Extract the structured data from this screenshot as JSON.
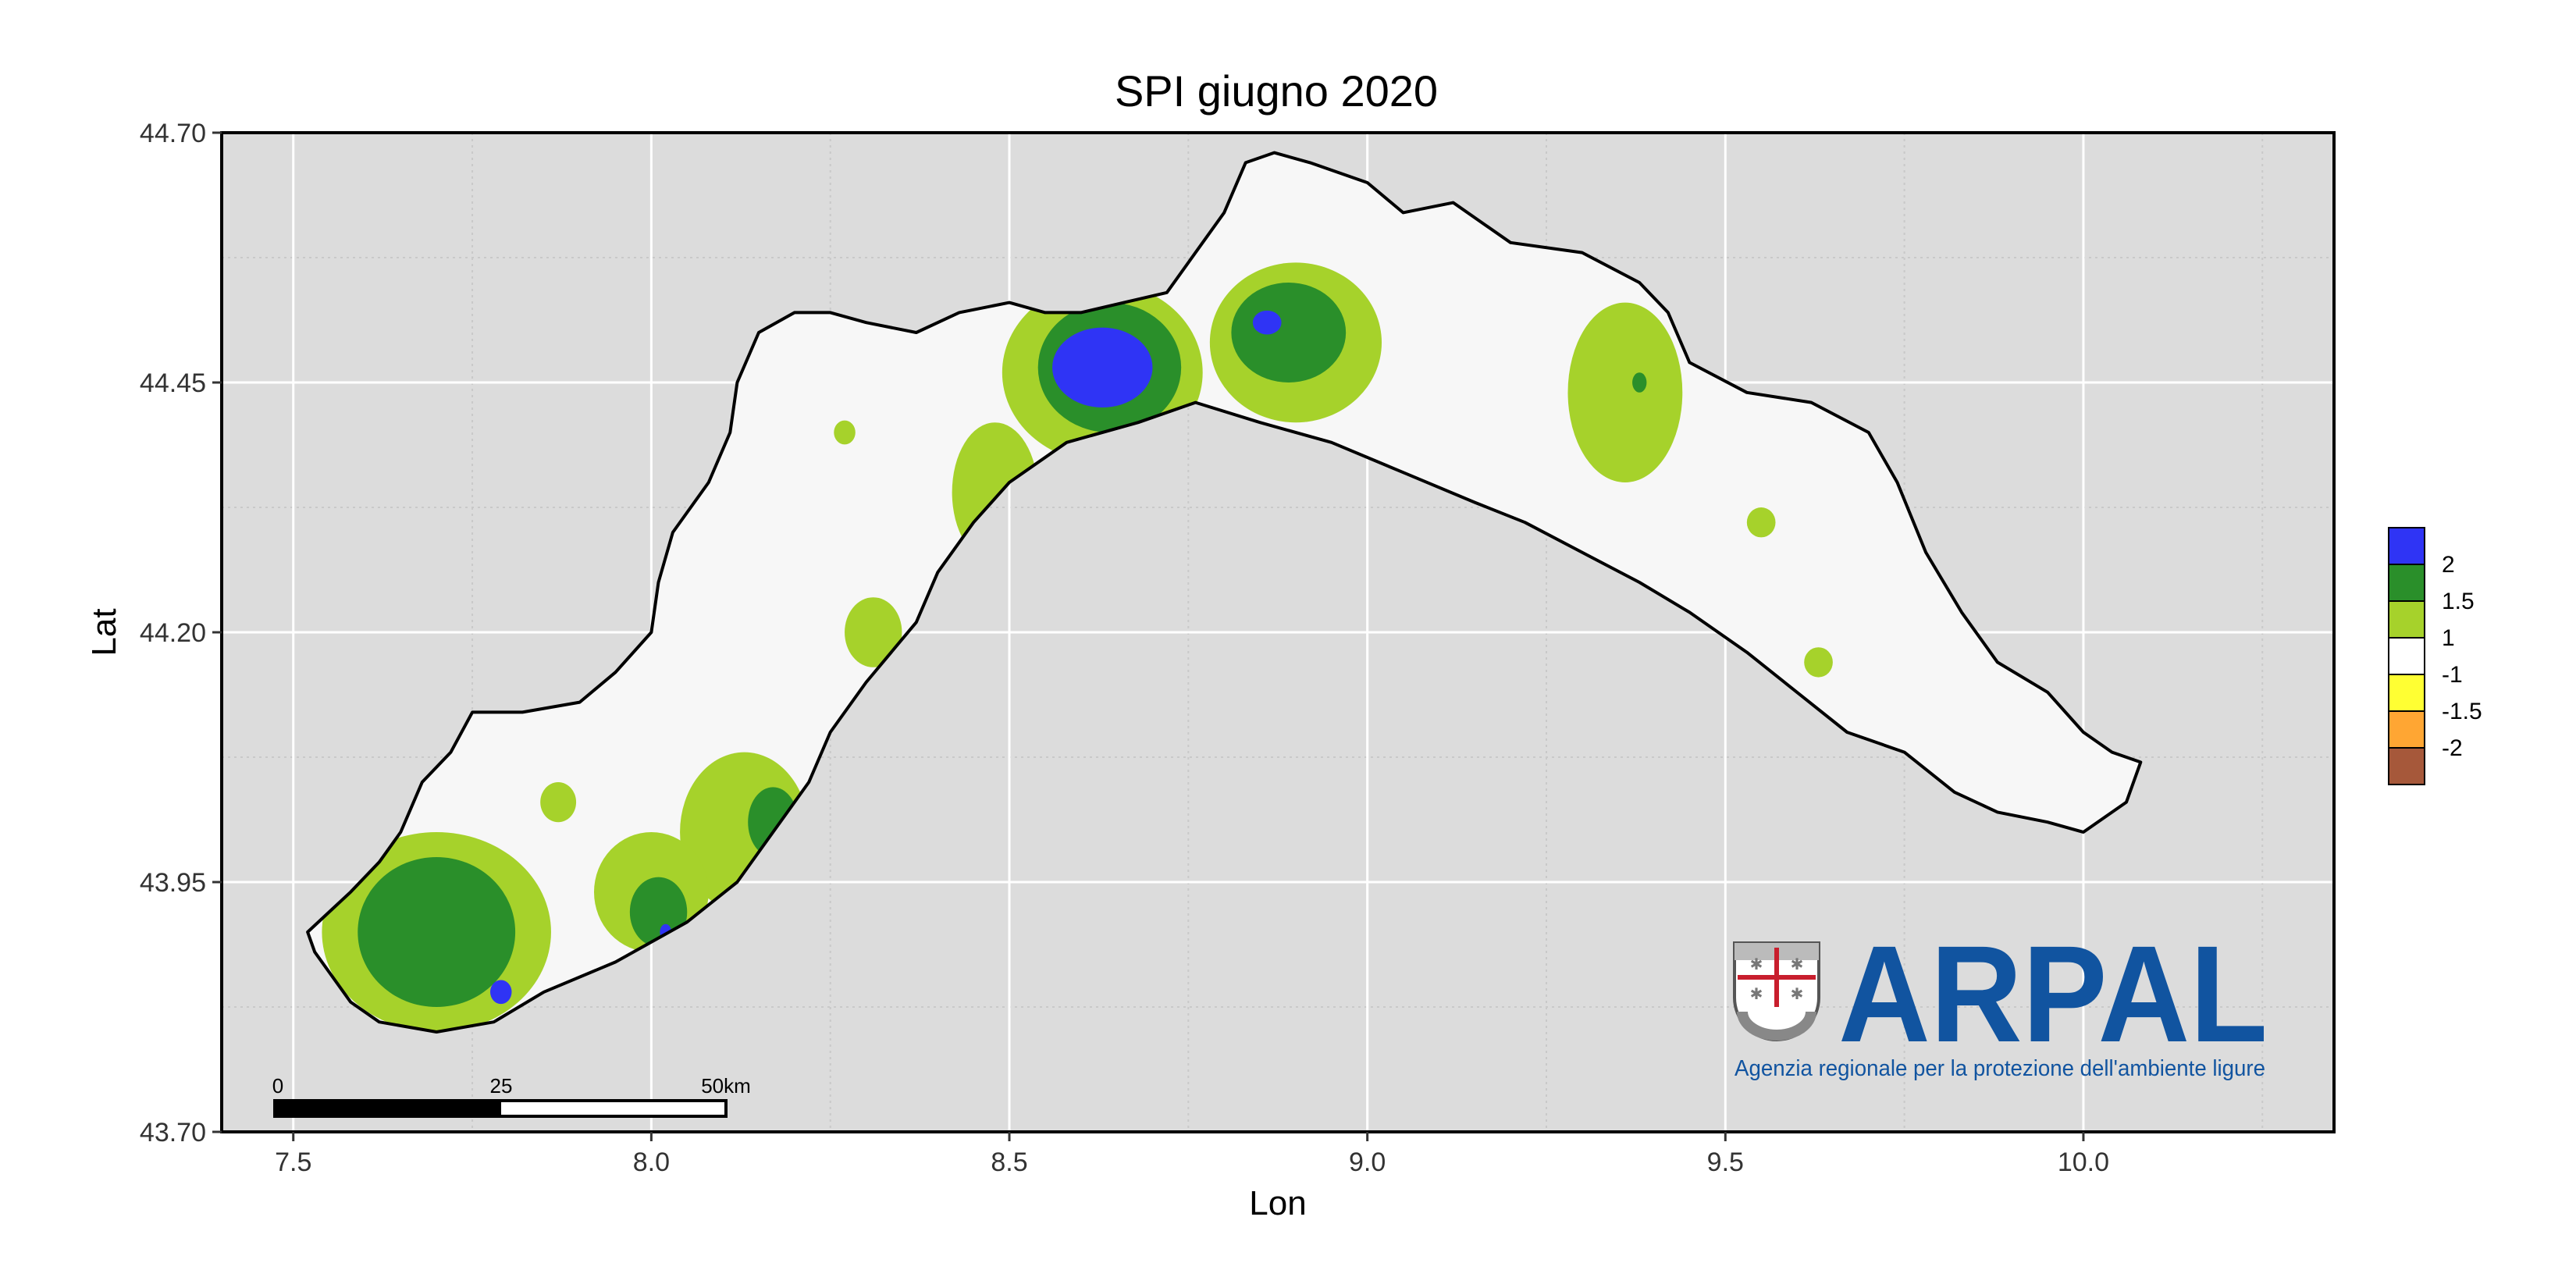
{
  "title": "SPI giugno 2020",
  "xlabel": "Lon",
  "ylabel": "Lat",
  "colors": {
    "panel": "#dcdcdc",
    "grid_major": "#ffffff",
    "grid_minor": "#c9c9c9",
    "land": "#f7f7f7",
    "spi_2": "#2f34f5",
    "spi_1_5": "#2a8f2a",
    "spi_1": "#a6d22b",
    "normal": "#ffffff",
    "spi_m1": "#ffff33",
    "spi_m1_5": "#ffa633",
    "spi_m2": "#a6583a",
    "logo_blue": "#1154a0"
  },
  "chart_data": {
    "type": "heatmap",
    "title": "SPI giugno 2020",
    "xlabel": "Lon",
    "ylabel": "Lat",
    "xlim": [
      7.4,
      10.35
    ],
    "ylim": [
      43.7,
      44.7
    ],
    "xticks": [
      7.5,
      8.0,
      8.5,
      9.0,
      9.5,
      10.0
    ],
    "xtick_labels": [
      "7.5",
      "8.0",
      "8.5",
      "9.0",
      "9.5",
      "10.0"
    ],
    "yticks": [
      43.7,
      43.95,
      44.2,
      44.45,
      44.7
    ],
    "ytick_labels": [
      "43.70",
      "43.95",
      "44.20",
      "44.45",
      "44.70"
    ],
    "grid": true,
    "legend": {
      "position": "right",
      "entries": [
        "2",
        "1.5",
        "1",
        "-1",
        "-1.5",
        "-2"
      ]
    },
    "region_outline": [
      [
        7.53,
        43.88
      ],
      [
        7.58,
        43.83
      ],
      [
        7.62,
        43.81
      ],
      [
        7.7,
        43.8
      ],
      [
        7.78,
        43.81
      ],
      [
        7.85,
        43.84
      ],
      [
        7.95,
        43.87
      ],
      [
        8.05,
        43.91
      ],
      [
        8.12,
        43.95
      ],
      [
        8.17,
        44.0
      ],
      [
        8.22,
        44.05
      ],
      [
        8.25,
        44.1
      ],
      [
        8.3,
        44.15
      ],
      [
        8.37,
        44.21
      ],
      [
        8.4,
        44.26
      ],
      [
        8.45,
        44.31
      ],
      [
        8.5,
        44.35
      ],
      [
        8.58,
        44.39
      ],
      [
        8.68,
        44.41
      ],
      [
        8.76,
        44.43
      ],
      [
        8.85,
        44.41
      ],
      [
        8.95,
        44.39
      ],
      [
        9.05,
        44.36
      ],
      [
        9.15,
        44.33
      ],
      [
        9.22,
        44.31
      ],
      [
        9.3,
        44.28
      ],
      [
        9.38,
        44.25
      ],
      [
        9.45,
        44.22
      ],
      [
        9.53,
        44.18
      ],
      [
        9.6,
        44.14
      ],
      [
        9.67,
        44.1
      ],
      [
        9.75,
        44.08
      ],
      [
        9.82,
        44.04
      ],
      [
        9.88,
        44.02
      ],
      [
        9.95,
        44.01
      ],
      [
        10.0,
        44.0
      ],
      [
        10.06,
        44.03
      ],
      [
        10.08,
        44.07
      ],
      [
        10.04,
        44.08
      ],
      [
        10.0,
        44.1
      ],
      [
        9.95,
        44.14
      ],
      [
        9.88,
        44.17
      ],
      [
        9.83,
        44.22
      ],
      [
        9.78,
        44.28
      ],
      [
        9.74,
        44.35
      ],
      [
        9.7,
        44.4
      ],
      [
        9.62,
        44.43
      ],
      [
        9.53,
        44.44
      ],
      [
        9.45,
        44.47
      ],
      [
        9.42,
        44.52
      ],
      [
        9.38,
        44.55
      ],
      [
        9.3,
        44.58
      ],
      [
        9.2,
        44.59
      ],
      [
        9.12,
        44.63
      ],
      [
        9.05,
        44.62
      ],
      [
        9.0,
        44.65
      ],
      [
        8.92,
        44.67
      ],
      [
        8.87,
        44.68
      ],
      [
        8.83,
        44.67
      ],
      [
        8.8,
        44.62
      ],
      [
        8.76,
        44.58
      ],
      [
        8.72,
        44.54
      ],
      [
        8.66,
        44.53
      ],
      [
        8.6,
        44.52
      ],
      [
        8.55,
        44.52
      ],
      [
        8.5,
        44.53
      ],
      [
        8.43,
        44.52
      ],
      [
        8.37,
        44.5
      ],
      [
        8.3,
        44.51
      ],
      [
        8.25,
        44.52
      ],
      [
        8.2,
        44.52
      ],
      [
        8.15,
        44.5
      ],
      [
        8.12,
        44.45
      ],
      [
        8.11,
        44.4
      ],
      [
        8.08,
        44.35
      ],
      [
        8.03,
        44.3
      ],
      [
        8.01,
        44.25
      ],
      [
        8.0,
        44.2
      ],
      [
        7.95,
        44.16
      ],
      [
        7.9,
        44.13
      ],
      [
        7.82,
        44.12
      ],
      [
        7.75,
        44.12
      ],
      [
        7.72,
        44.08
      ],
      [
        7.68,
        44.05
      ],
      [
        7.65,
        44.0
      ],
      [
        7.62,
        43.97
      ],
      [
        7.58,
        43.94
      ],
      [
        7.55,
        43.92
      ],
      [
        7.52,
        43.9
      ]
    ],
    "spi_areas": [
      {
        "class": "1",
        "lon": 8.63,
        "lat": 44.46,
        "rx": 0.14,
        "ry": 0.09
      },
      {
        "class": "1.5",
        "lon": 8.64,
        "lat": 44.465,
        "rx": 0.1,
        "ry": 0.065
      },
      {
        "class": "2",
        "lon": 8.63,
        "lat": 44.465,
        "rx": 0.07,
        "ry": 0.04
      },
      {
        "class": "1",
        "lon": 8.48,
        "lat": 44.34,
        "rx": 0.06,
        "ry": 0.07
      },
      {
        "class": "1",
        "lon": 8.9,
        "lat": 44.49,
        "rx": 0.12,
        "ry": 0.08
      },
      {
        "class": "1.5",
        "lon": 8.89,
        "lat": 44.5,
        "rx": 0.08,
        "ry": 0.05
      },
      {
        "class": "2",
        "lon": 8.86,
        "lat": 44.51,
        "rx": 0.02,
        "ry": 0.012
      },
      {
        "class": "1",
        "lon": 9.36,
        "lat": 44.44,
        "rx": 0.08,
        "ry": 0.09
      },
      {
        "class": "1.5",
        "lon": 9.38,
        "lat": 44.45,
        "rx": 0.01,
        "ry": 0.01
      },
      {
        "class": "1",
        "lon": 9.55,
        "lat": 44.31,
        "rx": 0.02,
        "ry": 0.015
      },
      {
        "class": "1",
        "lon": 9.63,
        "lat": 44.17,
        "rx": 0.02,
        "ry": 0.015
      },
      {
        "class": "1",
        "lon": 8.27,
        "lat": 44.4,
        "rx": 0.015,
        "ry": 0.012
      },
      {
        "class": "1",
        "lon": 8.31,
        "lat": 44.2,
        "rx": 0.04,
        "ry": 0.035
      },
      {
        "class": "1",
        "lon": 7.87,
        "lat": 44.03,
        "rx": 0.025,
        "ry": 0.02
      },
      {
        "class": "1",
        "lon": 8.13,
        "lat": 44.0,
        "rx": 0.09,
        "ry": 0.08
      },
      {
        "class": "1.5",
        "lon": 8.17,
        "lat": 44.01,
        "rx": 0.035,
        "ry": 0.035
      },
      {
        "class": "1",
        "lon": 8.0,
        "lat": 43.94,
        "rx": 0.08,
        "ry": 0.06
      },
      {
        "class": "1.5",
        "lon": 8.01,
        "lat": 43.92,
        "rx": 0.04,
        "ry": 0.035
      },
      {
        "class": "2",
        "lon": 8.02,
        "lat": 43.9,
        "rx": 0.008,
        "ry": 0.008
      },
      {
        "class": "1",
        "lon": 7.7,
        "lat": 43.9,
        "rx": 0.16,
        "ry": 0.1
      },
      {
        "class": "1.5",
        "lon": 7.7,
        "lat": 43.9,
        "rx": 0.11,
        "ry": 0.075
      },
      {
        "class": "2",
        "lon": 7.79,
        "lat": 43.84,
        "rx": 0.015,
        "ry": 0.012
      }
    ]
  },
  "scale_bar": {
    "labels": [
      "0",
      "25",
      "50km"
    ]
  },
  "logo": {
    "name": "ARPAL",
    "subtitle": "Agenzia regionale per la protezione dell'ambiente ligure",
    "icon": "liguria-shield-icon"
  }
}
